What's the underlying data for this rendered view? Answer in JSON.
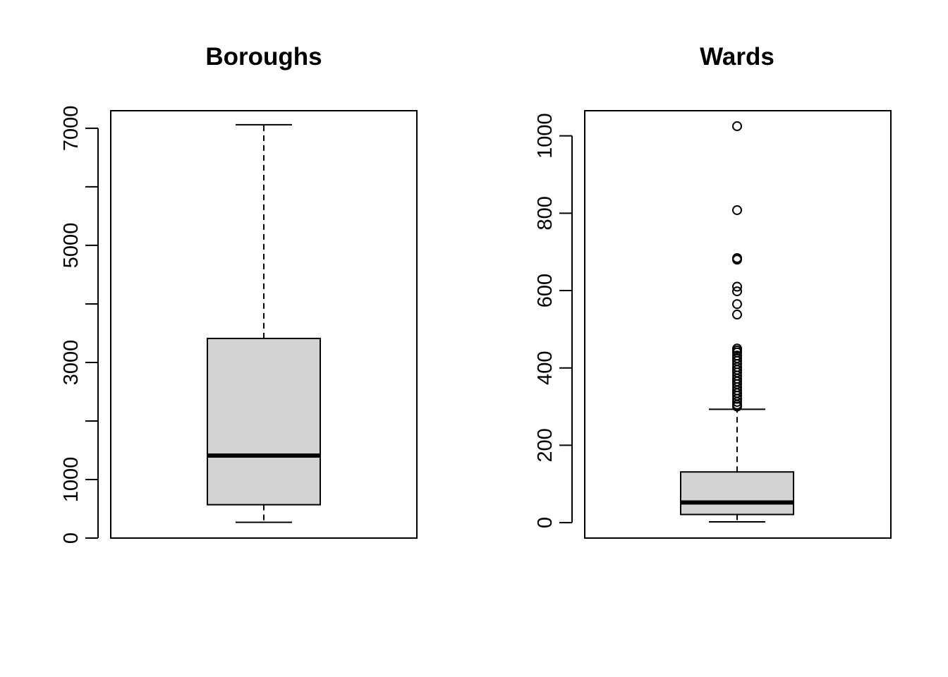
{
  "chart_data": [
    {
      "type": "boxplot",
      "title": "Boroughs",
      "xlabel": "",
      "ylabel": "",
      "ylim": [
        0,
        7300
      ],
      "yticks": [
        0,
        1000,
        2000,
        3000,
        4000,
        5000,
        6000,
        7000
      ],
      "ytick_labels": [
        "0",
        "1000",
        "",
        "3000",
        "",
        "5000",
        "",
        "7000"
      ],
      "box": {
        "whisker_low": 270,
        "q1": 570,
        "median": 1410,
        "q3": 3410,
        "whisker_high": 7060
      },
      "outliers": [],
      "box_color": "#d3d3d3"
    },
    {
      "type": "boxplot",
      "title": "Wards",
      "xlabel": "",
      "ylabel": "",
      "ylim": [
        -40,
        1065
      ],
      "yticks": [
        0,
        200,
        400,
        600,
        800,
        1000
      ],
      "ytick_labels": [
        "0",
        "200",
        "400",
        "600",
        "800",
        "1000"
      ],
      "box": {
        "whisker_low": 2,
        "q1": 21,
        "median": 52,
        "q3": 131,
        "whisker_high": 293
      },
      "outliers": [
        1025,
        808,
        684,
        680,
        610,
        598,
        565,
        538,
        450,
        445,
        440,
        432,
        425,
        418,
        410,
        402,
        395,
        388,
        380,
        372,
        365,
        358,
        350,
        342,
        335,
        328,
        320,
        312,
        305,
        300
      ],
      "box_color": "#d3d3d3"
    }
  ]
}
